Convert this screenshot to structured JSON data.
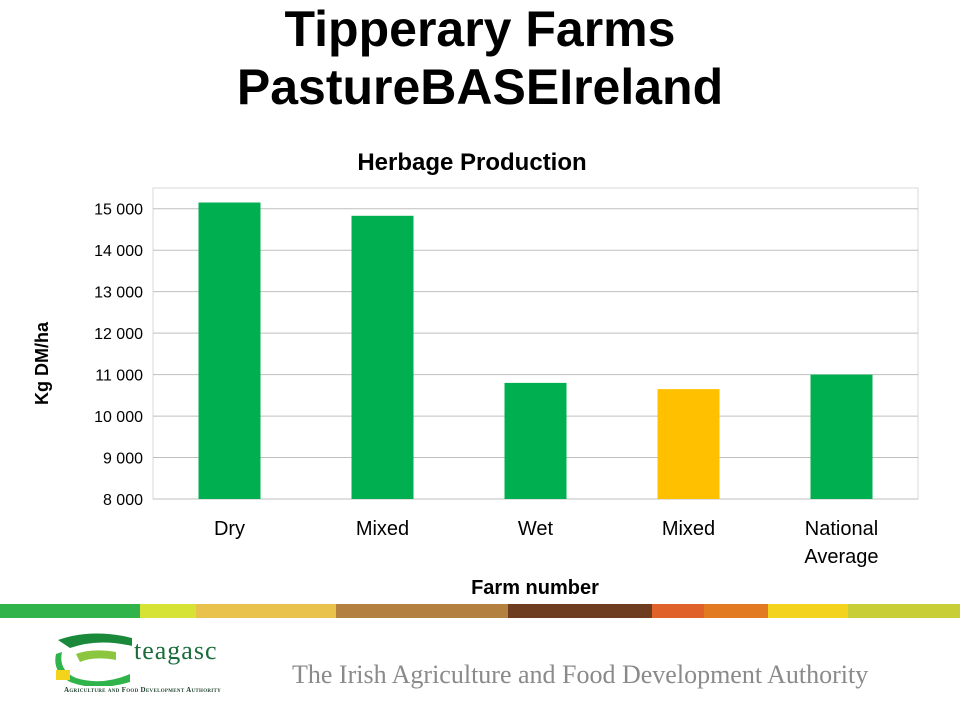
{
  "slide": {
    "title_line1": "Tipperary Farms",
    "title_line2": "PastureBASEIreland"
  },
  "footer": {
    "logo_text": "teagasc",
    "logo_subtext": "Agriculture and Food Development Authority",
    "authority_text": "The Irish Agriculture and Food Development Authority",
    "band_colors": [
      "#2fb34a",
      "#d6e234",
      "#e8c24a",
      "#e6c659",
      "#b38040",
      "#6e3d1f",
      "#e0622a",
      "#e27a22",
      "#f4d31c",
      "#c8cf36"
    ]
  },
  "chart_data": {
    "type": "bar",
    "title": "Herbage Production",
    "xlabel": "Farm number",
    "ylabel": "Kg DM/ha",
    "categories": [
      [
        "Dry"
      ],
      [
        "Mixed"
      ],
      [
        "Wet"
      ],
      [
        "Mixed"
      ],
      [
        "National",
        "Average"
      ]
    ],
    "values": [
      15150,
      14830,
      10800,
      10650,
      11000
    ],
    "colors": [
      "#00b050",
      "#00b050",
      "#00b050",
      "#ffc000",
      "#00b050"
    ],
    "ylim": [
      8000,
      15500
    ],
    "yticks": [
      8000,
      9000,
      10000,
      11000,
      12000,
      13000,
      14000,
      15000
    ],
    "ytick_labels": [
      "8 000",
      "9 000",
      "10 000",
      "11 000",
      "12 000",
      "13 000",
      "14 000",
      "15 000"
    ],
    "grid": true,
    "legend": "none"
  }
}
